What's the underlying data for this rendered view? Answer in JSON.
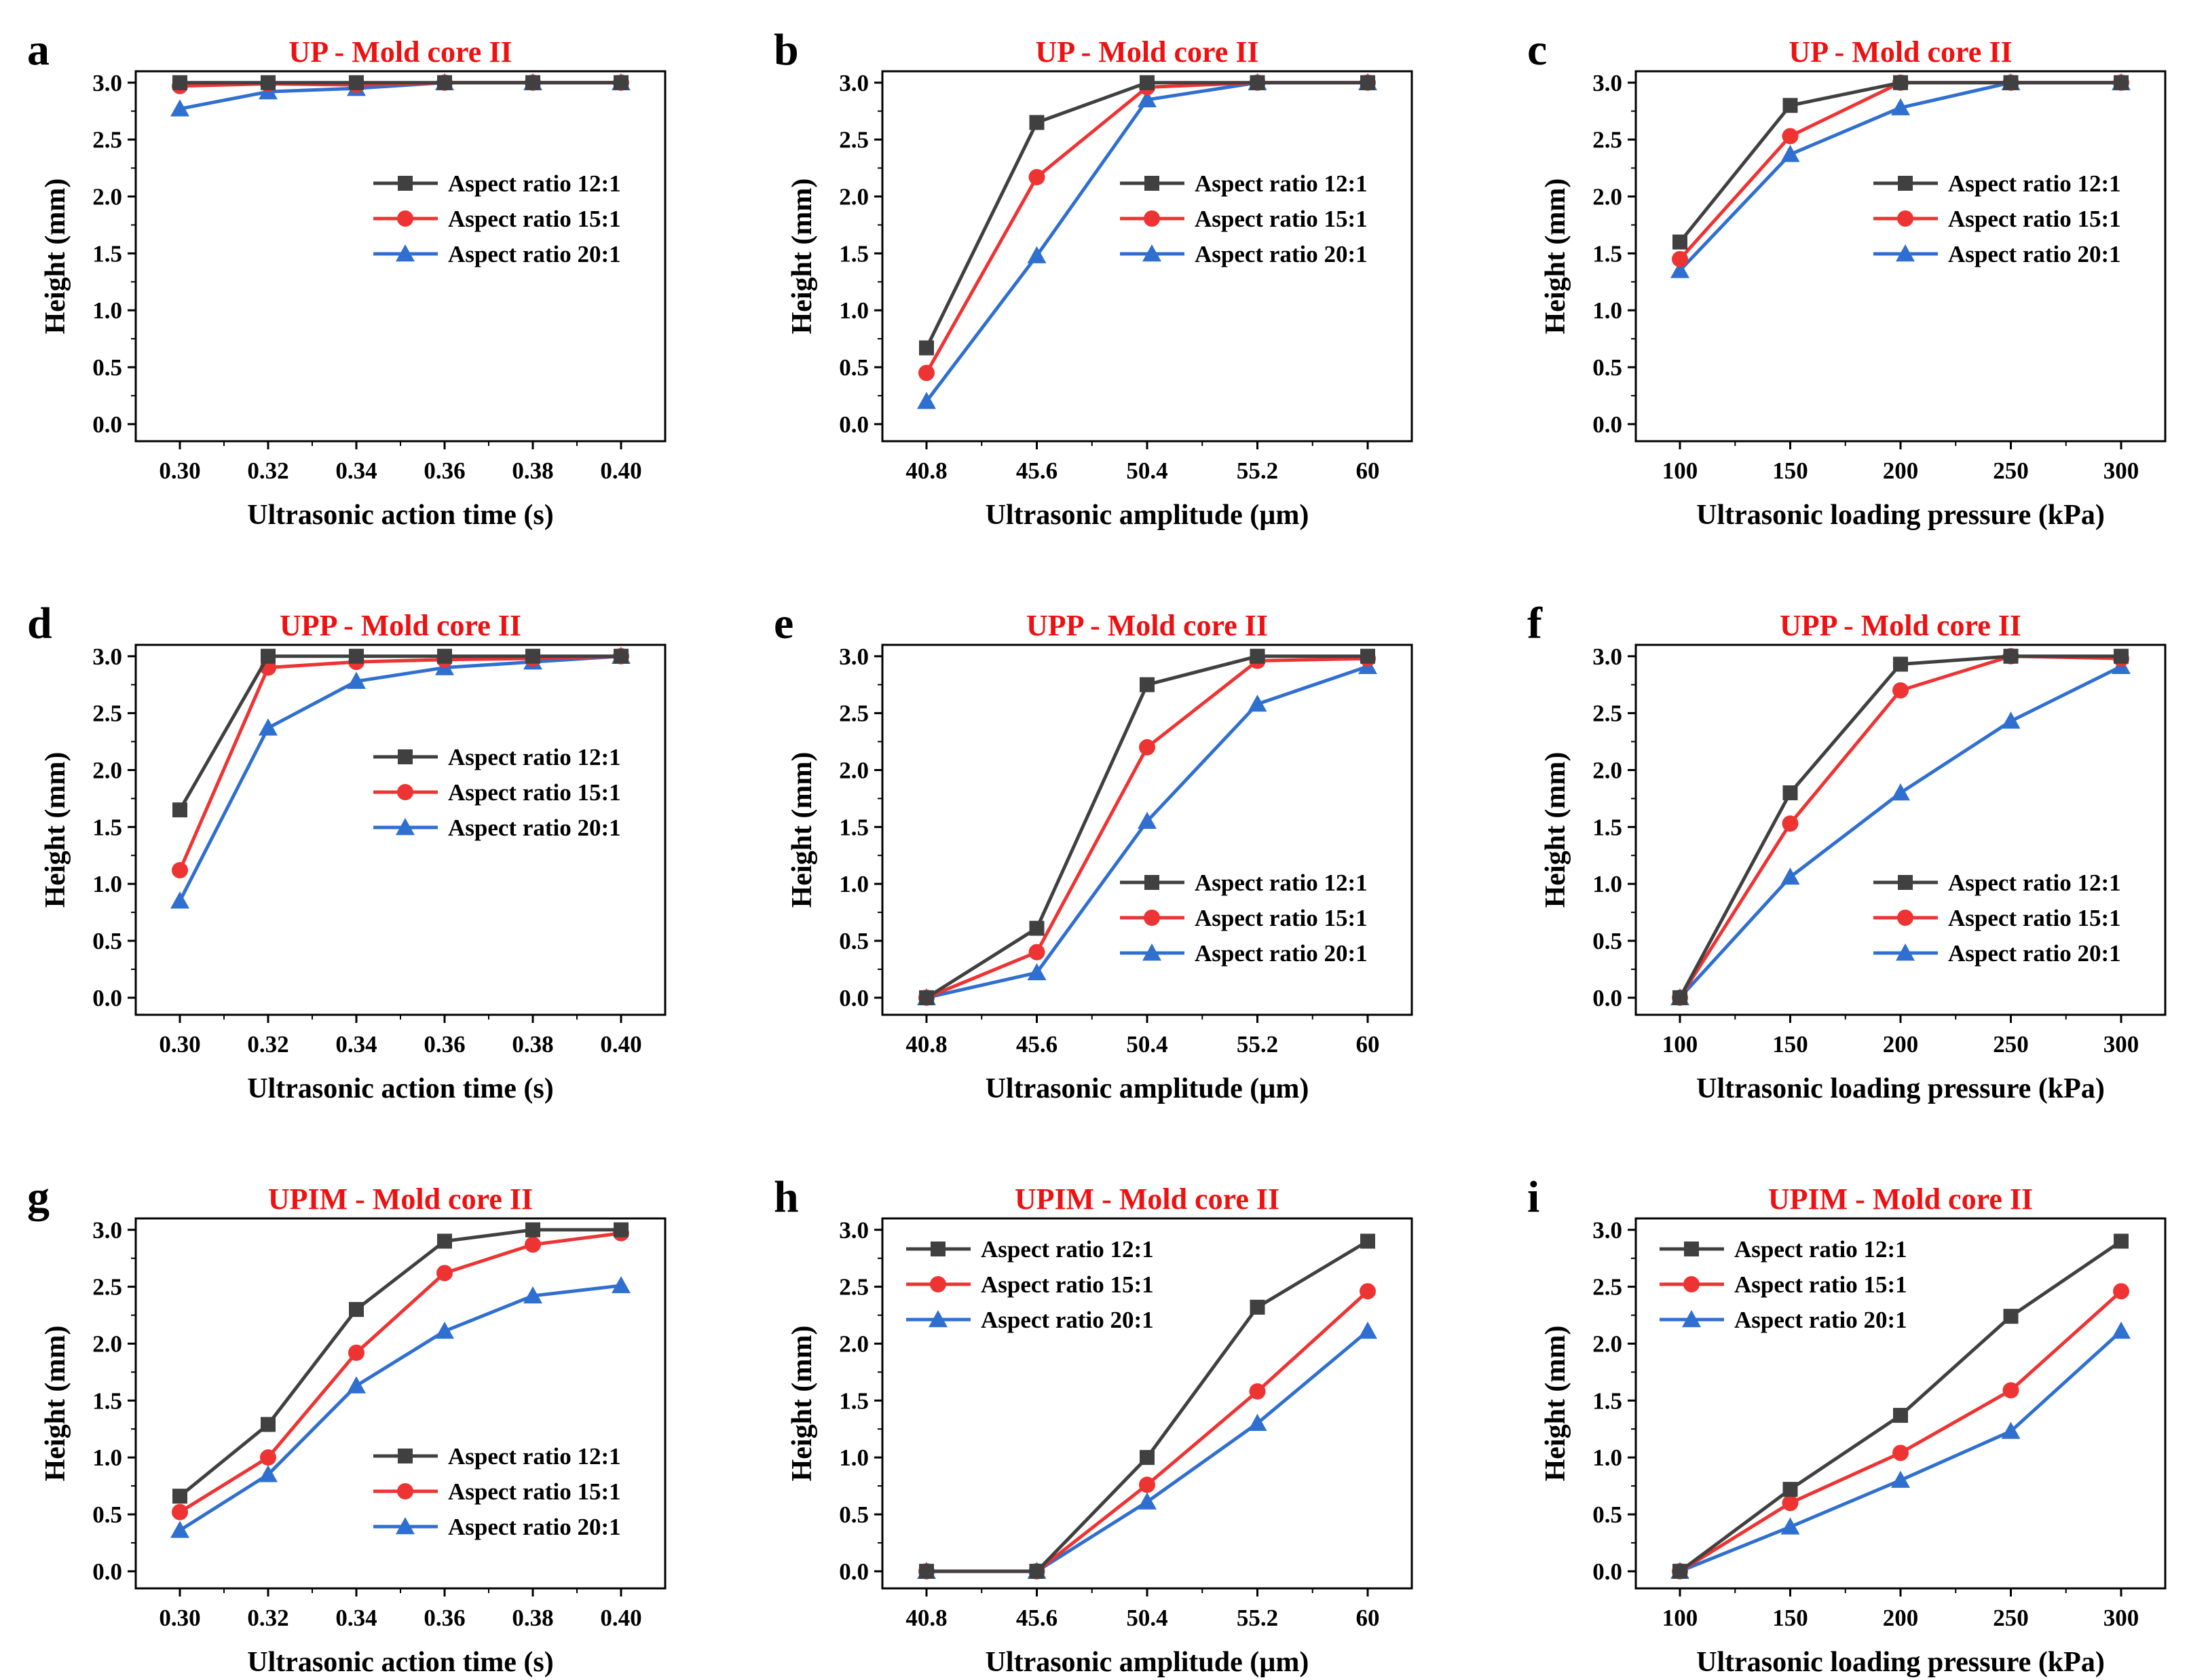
{
  "colors": {
    "series_1": "#404040",
    "series_2": "#ee3333",
    "series_3": "#2f6fd0",
    "title": "#ee1111"
  },
  "chart_data": [
    {
      "panel_label": "a",
      "type": "line",
      "title": "UP - Mold core II",
      "xlabel": "Ultrasonic action time (s)",
      "ylabel": "Height (mm)",
      "x": [
        "0.30",
        "0.32",
        "0.34",
        "0.36",
        "0.38",
        "0.40"
      ],
      "yticks": [
        "0.0",
        "0.5",
        "1.0",
        "1.5",
        "2.0",
        "2.5",
        "3.0"
      ],
      "ylim": [
        -0.15,
        3.1
      ],
      "legend_position": "right",
      "series": [
        {
          "name": "Aspect ratio 12:1",
          "marker": "square",
          "values": [
            3.0,
            3.0,
            3.0,
            3.0,
            3.0,
            3.0
          ]
        },
        {
          "name": "Aspect ratio 15:1",
          "marker": "circle",
          "values": [
            2.97,
            2.99,
            2.98,
            3.0,
            3.0,
            3.0
          ]
        },
        {
          "name": "Aspect ratio 20:1",
          "marker": "triangle",
          "values": [
            2.77,
            2.92,
            2.95,
            3.0,
            3.0,
            3.0
          ]
        }
      ]
    },
    {
      "panel_label": "b",
      "type": "line",
      "title": "UP - Mold core II",
      "xlabel": "Ultrasonic amplitude (µm)",
      "ylabel": "Height (mm)",
      "x": [
        "40.8",
        "45.6",
        "50.4",
        "55.2",
        "60"
      ],
      "yticks": [
        "0.0",
        "0.5",
        "1.0",
        "1.5",
        "2.0",
        "2.5",
        "3.0"
      ],
      "ylim": [
        -0.15,
        3.1
      ],
      "legend_position": "right",
      "series": [
        {
          "name": "Aspect ratio 12:1",
          "marker": "square",
          "values": [
            0.67,
            2.65,
            3.0,
            3.0,
            3.0
          ]
        },
        {
          "name": "Aspect ratio 15:1",
          "marker": "circle",
          "values": [
            0.45,
            2.17,
            2.96,
            3.0,
            3.0
          ]
        },
        {
          "name": "Aspect ratio 20:1",
          "marker": "triangle",
          "values": [
            0.2,
            1.48,
            2.85,
            3.0,
            3.0
          ]
        }
      ]
    },
    {
      "panel_label": "c",
      "type": "line",
      "title": "UP - Mold core II",
      "xlabel": "Ultrasonic loading pressure (kPa)",
      "ylabel": "Height (mm)",
      "x": [
        "100",
        "150",
        "200",
        "250",
        "300"
      ],
      "yticks": [
        "0.0",
        "0.5",
        "1.0",
        "1.5",
        "2.0",
        "2.5",
        "3.0"
      ],
      "ylim": [
        -0.15,
        3.1
      ],
      "legend_position": "right",
      "series": [
        {
          "name": "Aspect ratio 12:1",
          "marker": "square",
          "values": [
            1.6,
            2.8,
            3.0,
            3.0,
            3.0
          ]
        },
        {
          "name": "Aspect ratio 15:1",
          "marker": "circle",
          "values": [
            1.45,
            2.53,
            3.0,
            3.0,
            3.0
          ]
        },
        {
          "name": "Aspect ratio 20:1",
          "marker": "triangle",
          "values": [
            1.35,
            2.37,
            2.78,
            3.0,
            3.0
          ]
        }
      ]
    },
    {
      "panel_label": "d",
      "type": "line",
      "title": "UPP - Mold core II",
      "xlabel": "Ultrasonic action time (s)",
      "ylabel": "Height (mm)",
      "x": [
        "0.30",
        "0.32",
        "0.34",
        "0.36",
        "0.38",
        "0.40"
      ],
      "yticks": [
        "0.0",
        "0.5",
        "1.0",
        "1.5",
        "2.0",
        "2.5",
        "3.0"
      ],
      "ylim": [
        -0.15,
        3.1
      ],
      "legend_position": "right",
      "series": [
        {
          "name": "Aspect ratio 12:1",
          "marker": "square",
          "values": [
            1.65,
            3.0,
            3.0,
            3.0,
            3.0,
            3.0
          ]
        },
        {
          "name": "Aspect ratio 15:1",
          "marker": "circle",
          "values": [
            1.12,
            2.9,
            2.95,
            2.97,
            2.98,
            3.0
          ]
        },
        {
          "name": "Aspect ratio 20:1",
          "marker": "triangle",
          "values": [
            0.85,
            2.37,
            2.78,
            2.9,
            2.95,
            3.0
          ]
        }
      ]
    },
    {
      "panel_label": "e",
      "type": "line",
      "title": "UPP - Mold core II",
      "xlabel": "Ultrasonic amplitude (µm)",
      "ylabel": "Height (mm)",
      "x": [
        "40.8",
        "45.6",
        "50.4",
        "55.2",
        "60"
      ],
      "yticks": [
        "0.0",
        "0.5",
        "1.0",
        "1.5",
        "2.0",
        "2.5",
        "3.0"
      ],
      "ylim": [
        -0.15,
        3.1
      ],
      "legend_position": "bottom-right",
      "series": [
        {
          "name": "Aspect ratio 12:1",
          "marker": "square",
          "values": [
            0.0,
            0.61,
            2.75,
            3.0,
            3.0
          ]
        },
        {
          "name": "Aspect ratio 15:1",
          "marker": "circle",
          "values": [
            0.0,
            0.4,
            2.2,
            2.96,
            2.98
          ]
        },
        {
          "name": "Aspect ratio 20:1",
          "marker": "triangle",
          "values": [
            0.0,
            0.22,
            1.55,
            2.58,
            2.91
          ]
        }
      ]
    },
    {
      "panel_label": "f",
      "type": "line",
      "title": "UPP - Mold core II",
      "xlabel": "Ultrasonic loading pressure (kPa)",
      "ylabel": "Height (mm)",
      "x": [
        "100",
        "150",
        "200",
        "250",
        "300"
      ],
      "yticks": [
        "0.0",
        "0.5",
        "1.0",
        "1.5",
        "2.0",
        "2.5",
        "3.0"
      ],
      "ylim": [
        -0.15,
        3.1
      ],
      "legend_position": "bottom-right",
      "series": [
        {
          "name": "Aspect ratio 12:1",
          "marker": "square",
          "values": [
            0.0,
            1.8,
            2.93,
            3.0,
            3.0
          ]
        },
        {
          "name": "Aspect ratio 15:1",
          "marker": "circle",
          "values": [
            0.0,
            1.53,
            2.7,
            3.0,
            2.98
          ]
        },
        {
          "name": "Aspect ratio 20:1",
          "marker": "triangle",
          "values": [
            0.0,
            1.06,
            1.8,
            2.43,
            2.91
          ]
        }
      ]
    },
    {
      "panel_label": "g",
      "type": "line",
      "title": "UPIM - Mold core II",
      "xlabel": "Ultrasonic action time (s)",
      "ylabel": "Height (mm)",
      "x": [
        "0.30",
        "0.32",
        "0.34",
        "0.36",
        "0.38",
        "0.40"
      ],
      "yticks": [
        "0.0",
        "0.5",
        "1.0",
        "1.5",
        "2.0",
        "2.5",
        "3.0"
      ],
      "ylim": [
        -0.15,
        3.1
      ],
      "legend_position": "bottom-right",
      "series": [
        {
          "name": "Aspect ratio 12:1",
          "marker": "square",
          "values": [
            0.66,
            1.29,
            2.3,
            2.9,
            3.0,
            3.0
          ]
        },
        {
          "name": "Aspect ratio 15:1",
          "marker": "circle",
          "values": [
            0.52,
            1.0,
            1.92,
            2.62,
            2.87,
            2.97
          ]
        },
        {
          "name": "Aspect ratio 20:1",
          "marker": "triangle",
          "values": [
            0.36,
            0.85,
            1.63,
            2.11,
            2.42,
            2.51
          ]
        }
      ]
    },
    {
      "panel_label": "h",
      "type": "line",
      "title": "UPIM - Mold core II",
      "xlabel": "Ultrasonic amplitude (µm)",
      "ylabel": "Height (mm)",
      "x": [
        "40.8",
        "45.6",
        "50.4",
        "55.2",
        "60"
      ],
      "yticks": [
        "0.0",
        "0.5",
        "1.0",
        "1.5",
        "2.0",
        "2.5",
        "3.0"
      ],
      "ylim": [
        -0.15,
        3.1
      ],
      "legend_position": "top-left",
      "series": [
        {
          "name": "Aspect ratio 12:1",
          "marker": "square",
          "values": [
            0.0,
            0.0,
            1.0,
            2.32,
            2.9
          ]
        },
        {
          "name": "Aspect ratio 15:1",
          "marker": "circle",
          "values": [
            0.0,
            0.0,
            0.76,
            1.58,
            2.46
          ]
        },
        {
          "name": "Aspect ratio 20:1",
          "marker": "triangle",
          "values": [
            0.0,
            0.0,
            0.61,
            1.3,
            2.11
          ]
        }
      ]
    },
    {
      "panel_label": "i",
      "type": "line",
      "title": "UPIM - Mold core II",
      "xlabel": "Ultrasonic loading pressure (kPa)",
      "ylabel": "Height (mm)",
      "x": [
        "100",
        "150",
        "200",
        "250",
        "300"
      ],
      "yticks": [
        "0.0",
        "0.5",
        "1.0",
        "1.5",
        "2.0",
        "2.5",
        "3.0"
      ],
      "ylim": [
        -0.15,
        3.1
      ],
      "legend_position": "top-left",
      "series": [
        {
          "name": "Aspect ratio 12:1",
          "marker": "square",
          "values": [
            0.0,
            0.72,
            1.37,
            2.24,
            2.9
          ]
        },
        {
          "name": "Aspect ratio 15:1",
          "marker": "circle",
          "values": [
            0.0,
            0.6,
            1.04,
            1.59,
            2.46
          ]
        },
        {
          "name": "Aspect ratio 20:1",
          "marker": "triangle",
          "values": [
            0.0,
            0.39,
            0.8,
            1.23,
            2.11
          ]
        }
      ]
    }
  ]
}
